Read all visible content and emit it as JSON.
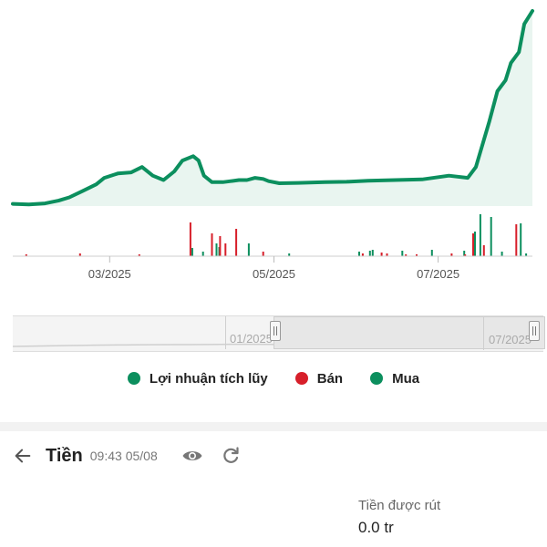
{
  "chart_data": {
    "type": "line",
    "x_axis_ticks": [
      "03/2025",
      "05/2025",
      "07/2025"
    ],
    "x_range": [
      "2025-01-24",
      "2025-08-05"
    ],
    "colors": {
      "cumulative_profit": "#0c8f5e",
      "sell": "#d71f2a",
      "buy": "#0c8f5e"
    },
    "cumulative_profit": {
      "x": [
        "2025-01-24",
        "2025-01-30",
        "2025-02-05",
        "2025-02-10",
        "2025-02-14",
        "2025-02-19",
        "2025-02-24",
        "2025-02-27",
        "2025-03-04",
        "2025-03-09",
        "2025-03-13",
        "2025-03-17",
        "2025-03-21",
        "2025-03-25",
        "2025-03-28",
        "2025-04-01",
        "2025-04-03",
        "2025-04-05",
        "2025-04-08",
        "2025-04-12",
        "2025-04-15",
        "2025-04-18",
        "2025-04-21",
        "2025-04-24",
        "2025-04-27",
        "2025-04-29",
        "2025-05-03",
        "2025-05-10",
        "2025-05-20",
        "2025-05-28",
        "2025-06-05",
        "2025-06-15",
        "2025-06-25",
        "2025-07-05",
        "2025-07-12",
        "2025-07-15",
        "2025-07-20",
        "2025-07-23",
        "2025-07-26",
        "2025-07-28",
        "2025-07-31",
        "2025-08-02",
        "2025-08-05"
      ],
      "y": [
        0.0,
        -0.3,
        0.2,
        1.5,
        3.0,
        6.0,
        9.0,
        12.0,
        14.0,
        14.5,
        17.0,
        13.0,
        11.0,
        15.0,
        20.0,
        22.0,
        20.0,
        13.0,
        10.0,
        10.0,
        10.5,
        11.0,
        11.0,
        12.0,
        11.5,
        10.5,
        9.5,
        9.7,
        10.0,
        10.2,
        10.7,
        11.0,
        11.3,
        13.0,
        12.0,
        17.0,
        38.0,
        52.0,
        57.0,
        65.0,
        70.0,
        83.0,
        89.0
      ]
    },
    "buy_volume": {
      "x": [
        "2025-03-31",
        "2025-04-04",
        "2025-04-09",
        "2025-04-10",
        "2025-04-21",
        "2025-05-06",
        "2025-06-01",
        "2025-06-05",
        "2025-06-06",
        "2025-06-17",
        "2025-06-28",
        "2025-07-10",
        "2025-07-14",
        "2025-07-16",
        "2025-07-20",
        "2025-07-24",
        "2025-07-31",
        "2025-08-02"
      ],
      "values": [
        9,
        5,
        14,
        10,
        14,
        3,
        5,
        6,
        7,
        6,
        7,
        6,
        27,
        46,
        43,
        5,
        36,
        3
      ]
    },
    "sell_volume": {
      "x": [
        "2025-01-29",
        "2025-02-18",
        "2025-03-12",
        "2025-03-31",
        "2025-04-08",
        "2025-04-11",
        "2025-04-13",
        "2025-04-17",
        "2025-04-27",
        "2025-06-03",
        "2025-06-10",
        "2025-06-12",
        "2025-06-19",
        "2025-06-23",
        "2025-07-06",
        "2025-07-11",
        "2025-07-14",
        "2025-07-18",
        "2025-07-30"
      ],
      "values": [
        2,
        3,
        2,
        37,
        25,
        22,
        14,
        30,
        5,
        3,
        4,
        3,
        2,
        2,
        3,
        2,
        25,
        12,
        35
      ]
    }
  },
  "range_selector": {
    "left_label": "01/2025",
    "right_label": "07/2025"
  },
  "legend": {
    "items": [
      {
        "label": "Lợi nhuận tích lũy",
        "color": "#0c8f5e"
      },
      {
        "label": "Bán",
        "color": "#d71f2a"
      },
      {
        "label": "Mua",
        "color": "#0c8f5e"
      }
    ]
  },
  "cash_header": {
    "title": "Tiền",
    "time": "09:43 05/08",
    "icons": [
      "back-arrow-icon",
      "eye-icon",
      "refresh-icon"
    ]
  },
  "withdrawable": {
    "label": "Tiền được rút",
    "value": "0.0 tr"
  }
}
